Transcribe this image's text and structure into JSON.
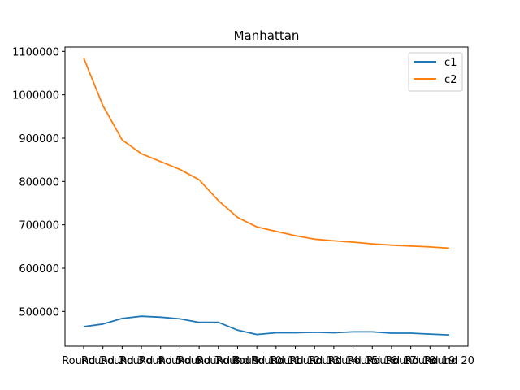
{
  "chart_data": {
    "type": "line",
    "title": "Manhattan",
    "xlabel": "",
    "ylabel": "",
    "categories": [
      "Round 1",
      "Round 2",
      "Round 3",
      "Round 4",
      "Round 5",
      "Round 6",
      "Round 7",
      "Round 8",
      "Round 9",
      "Round 10",
      "Round 11",
      "Round 12",
      "Round 13",
      "Round 14",
      "Round 15",
      "Round 16",
      "Round 17",
      "Round 18",
      "Round 19",
      "Round 20"
    ],
    "ylim": [
      420000,
      1110000
    ],
    "yticks": [
      500000,
      600000,
      700000,
      800000,
      900000,
      1000000,
      1100000
    ],
    "ytick_labels": [
      "500000",
      "600000",
      "700000",
      "800000",
      "900000",
      "1000000",
      "1100000"
    ],
    "grid": false,
    "legend": "top-right",
    "series": [
      {
        "name": "c1",
        "color": "#1f77b4",
        "values": [
          465000,
          471000,
          484000,
          489000,
          487000,
          483000,
          475000,
          475000,
          457000,
          447000,
          451000,
          451000,
          452000,
          451000,
          453000,
          453000,
          450000,
          450000,
          448000,
          446000
        ]
      },
      {
        "name": "c2",
        "color": "#ff7f0e",
        "values": [
          1085000,
          975000,
          896000,
          864000,
          846000,
          828000,
          804000,
          756000,
          717000,
          695000,
          685000,
          675000,
          667000,
          663000,
          660000,
          656000,
          653000,
          651000,
          649000,
          646000
        ]
      }
    ]
  }
}
